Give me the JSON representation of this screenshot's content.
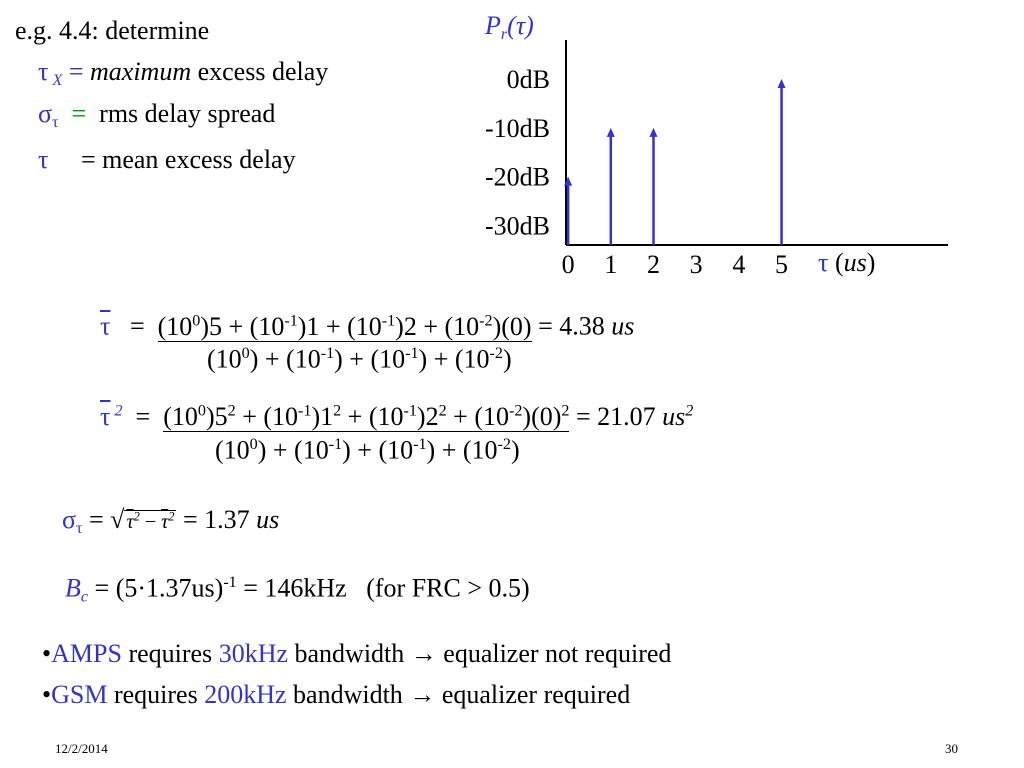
{
  "chart_data": {
    "type": "stem",
    "y_title": [
      {
        "text": "P",
        "style": "i"
      },
      {
        "text": "r",
        "style": "sub i"
      },
      {
        "text": "(τ)",
        "style": "i"
      }
    ],
    "x_title": [
      {
        "text": "τ",
        "style": "blue"
      },
      {
        "text": " ("
      },
      {
        "text": "us",
        "style": "i"
      },
      {
        "text": ")"
      }
    ],
    "x": [
      0,
      1,
      2,
      5
    ],
    "values": [
      -20,
      -10,
      -10,
      0
    ],
    "color": "#3333cc",
    "xlim": [
      -0.05,
      8.9
    ],
    "xticks": [
      0,
      1,
      2,
      3,
      4,
      5
    ],
    "ylim": [
      -34,
      8
    ],
    "yticks": [
      {
        "value": 0,
        "label": "0dB"
      },
      {
        "value": -10,
        "label": "-10dB"
      },
      {
        "value": -20,
        "label": "-20dB"
      },
      {
        "value": -30,
        "label": "-30dB"
      }
    ]
  },
  "intro": "e.g. 4.4: determine",
  "definitions": [
    [
      {
        "text": "τ",
        "style": "blue"
      },
      {
        "text": " X",
        "style": "sub i blue"
      },
      {
        "text": " = ",
        "style": "blue"
      },
      {
        "text": "maximum",
        "style": "i"
      },
      {
        "text": " excess delay"
      }
    ],
    [
      {
        "text": "σ",
        "style": "blue"
      },
      {
        "text": "τ",
        "style": "sub blue"
      },
      {
        "text": "  =  ",
        "style": "green"
      },
      {
        "text": "rms delay spread"
      }
    ],
    [
      {
        "text": "τ",
        "style": "blue"
      },
      {
        "text": "     = mean excess delay"
      }
    ]
  ],
  "mean": {
    "lhs": [
      {
        "text": "τ",
        "style": "blue ol"
      },
      {
        "text": "   =  "
      }
    ],
    "numerator": [
      {
        "text": "(10"
      },
      {
        "text": "0",
        "style": "sup"
      },
      {
        "text": ")5 + (10"
      },
      {
        "text": "-1",
        "style": "sup"
      },
      {
        "text": ")1 + (10"
      },
      {
        "text": "-1",
        "style": "sup"
      },
      {
        "text": ")2 + (10"
      },
      {
        "text": "-2",
        "style": "sup"
      },
      {
        "text": ")(0)"
      }
    ],
    "result": [
      {
        "text": " = 4.38 "
      },
      {
        "text": "us",
        "style": "i"
      }
    ],
    "denominator": [
      {
        "text": "(10"
      },
      {
        "text": "0",
        "style": "sup"
      },
      {
        "text": ") + (10"
      },
      {
        "text": "-1",
        "style": "sup"
      },
      {
        "text": ") + (10"
      },
      {
        "text": "-1",
        "style": "sup"
      },
      {
        "text": ") + (10"
      },
      {
        "text": "-2",
        "style": "sup"
      },
      {
        "text": ")"
      }
    ]
  },
  "second_moment": {
    "lhs": [
      {
        "text": "τ",
        "style": "blue ol"
      },
      {
        "text": " 2",
        "style": "sup blue i"
      },
      {
        "text": "  =  "
      }
    ],
    "numerator": [
      {
        "text": "(10"
      },
      {
        "text": "0",
        "style": "sup"
      },
      {
        "text": ")5"
      },
      {
        "text": "2",
        "style": "sup"
      },
      {
        "text": " + (10"
      },
      {
        "text": "-1",
        "style": "sup"
      },
      {
        "text": ")1"
      },
      {
        "text": "2",
        "style": "sup"
      },
      {
        "text": " + (10"
      },
      {
        "text": "-1",
        "style": "sup"
      },
      {
        "text": ")2"
      },
      {
        "text": "2",
        "style": "sup"
      },
      {
        "text": " + (10"
      },
      {
        "text": "-2",
        "style": "sup"
      },
      {
        "text": ")(0)"
      },
      {
        "text": "2",
        "style": "sup"
      }
    ],
    "result": [
      {
        "text": " = 21.07 "
      },
      {
        "text": "us",
        "style": "i"
      },
      {
        "text": "2",
        "style": "sup i"
      }
    ],
    "denominator": [
      {
        "text": "(10"
      },
      {
        "text": "0",
        "style": "sup"
      },
      {
        "text": ") + (10"
      },
      {
        "text": "-1",
        "style": "sup"
      },
      {
        "text": ") + (10"
      },
      {
        "text": "-1",
        "style": "sup"
      },
      {
        "text": ") + (10"
      },
      {
        "text": "-2",
        "style": "sup"
      },
      {
        "text": ")"
      }
    ]
  },
  "rms": {
    "lhs": [
      {
        "text": "σ",
        "style": "blue"
      },
      {
        "text": "τ",
        "style": "sub blue"
      },
      {
        "text": " = "
      }
    ],
    "radicand": [
      {
        "text": "τ",
        "style": "ol i"
      },
      {
        "text": "2",
        "style": "sup i"
      },
      {
        "text": " − "
      },
      {
        "text": "τ",
        "style": "ol i"
      },
      {
        "text": "2",
        "style": "sup i"
      }
    ],
    "result": [
      {
        "text": " = 1.37 "
      },
      {
        "text": "us",
        "style": "i"
      }
    ]
  },
  "coherence": [
    {
      "text": "B",
      "style": "blue i"
    },
    {
      "text": "c",
      "style": "sub blue i"
    },
    {
      "text": " = (5·1.37us)"
    },
    {
      "text": "-1",
      "style": "sup"
    },
    {
      "text": " = 146kHz   (for FRC > 0.5)"
    }
  ],
  "bullets": [
    [
      {
        "text": "•"
      },
      {
        "text": "AMPS",
        "style": "blue"
      },
      {
        "text": " requires "
      },
      {
        "text": "30kHz",
        "style": "blue"
      },
      {
        "text": " bandwidth "
      },
      {
        "text": "→",
        "style": "b"
      },
      {
        "text": " equalizer not required"
      }
    ],
    [
      {
        "text": "•"
      },
      {
        "text": "GSM",
        "style": "blue"
      },
      {
        "text": " requires "
      },
      {
        "text": "200kHz",
        "style": "blue"
      },
      {
        "text": " bandwidth "
      },
      {
        "text": "→",
        "style": "b"
      },
      {
        "text": " equalizer required"
      }
    ]
  ],
  "footer": {
    "date": "12/2/2014",
    "page": "30"
  }
}
